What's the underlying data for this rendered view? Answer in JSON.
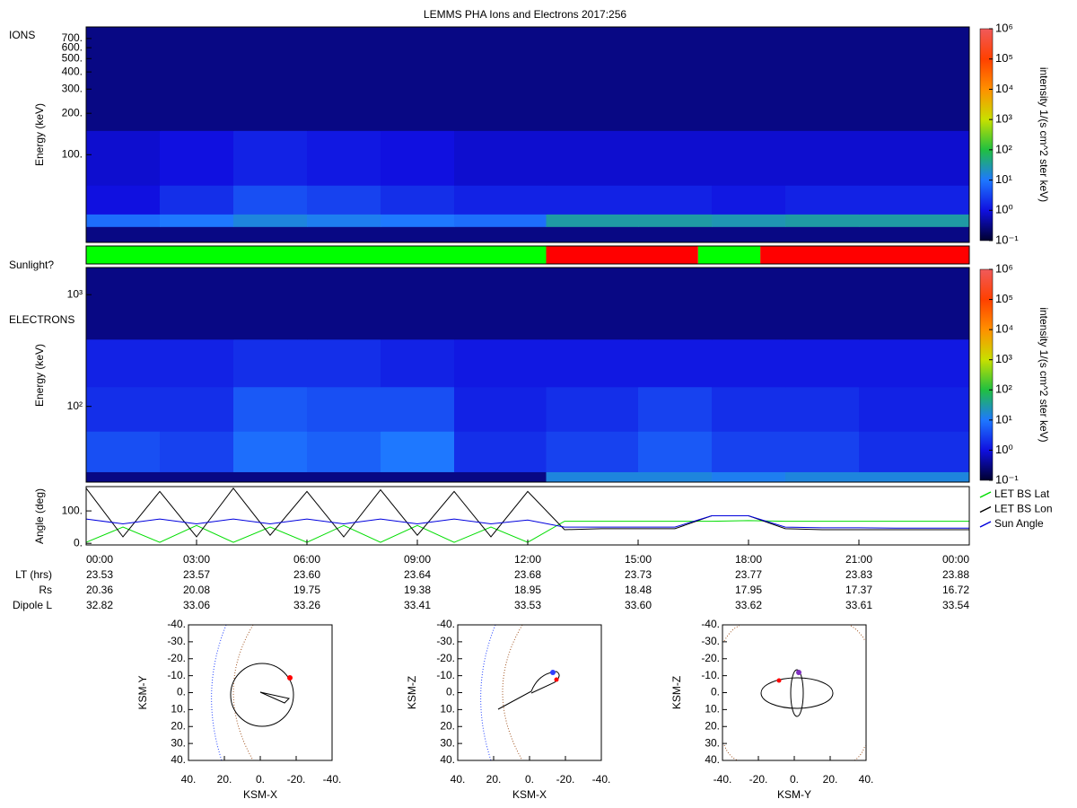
{
  "chart_data": [
    {
      "type": "spectrogram",
      "title": "LEMMS PHA Ions and Electrons  2017:256",
      "panel_label": "IONS",
      "ylabel": "Energy (keV)",
      "log_y": true,
      "xlim": [
        0,
        24
      ],
      "ylim": [
        23,
        850
      ],
      "yticks": [
        {
          "value": 100,
          "label": "100."
        },
        {
          "value": 200,
          "label": "200."
        },
        {
          "value": 300,
          "label": "300."
        },
        {
          "value": 400,
          "label": "400."
        },
        {
          "value": 500,
          "label": "500."
        },
        {
          "value": 600,
          "label": "600."
        },
        {
          "value": 700,
          "label": "700."
        }
      ],
      "time_bins": [
        0,
        2,
        4,
        6,
        8,
        10,
        12.5,
        15,
        17,
        19,
        21,
        24
      ],
      "energy_bins": [
        23,
        30,
        37,
        60,
        150,
        850
      ],
      "intensity": [
        [
          0.3,
          0.3,
          0.3,
          0.3,
          0.3,
          0.3,
          0.3,
          0.3,
          0.3,
          0.3,
          0.3
        ],
        [
          8,
          10,
          15,
          12,
          10,
          8,
          30,
          30,
          25,
          30,
          30
        ],
        [
          1,
          2,
          4,
          3,
          2,
          1.5,
          1.5,
          1.5,
          1.2,
          1.5,
          1.5
        ],
        [
          0.8,
          1,
          1.5,
          1.2,
          1,
          0.8,
          0.8,
          0.8,
          0.8,
          0.8,
          0.8
        ],
        [
          0.3,
          0.3,
          0.3,
          0.3,
          0.3,
          0.3,
          0.3,
          0.3,
          0.3,
          0.3,
          0.3
        ]
      ],
      "clim": [
        0.1,
        1000000
      ],
      "cticks": [
        {
          "value": 0.1,
          "label": "10⁻¹"
        },
        {
          "value": 1,
          "label": "10⁰"
        },
        {
          "value": 10,
          "label": "10¹"
        },
        {
          "value": 100,
          "label": "10²"
        },
        {
          "value": 1000,
          "label": "10³"
        },
        {
          "value": 10000,
          "label": "10⁴"
        },
        {
          "value": 100000,
          "label": "10⁵"
        },
        {
          "value": 1000000,
          "label": "10⁶"
        }
      ],
      "clabel": "intensity 1/(s cm^2 ster keV)",
      "colormap": [
        "#000030",
        "#1010e0",
        "#1e78ff",
        "#20c040",
        "#c8e000",
        "#ff9000",
        "#ff4000",
        "#f05a5a"
      ]
    },
    {
      "type": "state_bar",
      "panel_label": "Sunlight?",
      "xlim": [
        0,
        24
      ],
      "segments": [
        {
          "start": 0,
          "end": 12.5,
          "color": "#00ff00"
        },
        {
          "start": 12.5,
          "end": 16.63,
          "color": "#ff0000"
        },
        {
          "start": 16.63,
          "end": 18.32,
          "color": "#00ff00"
        },
        {
          "start": 18.32,
          "end": 24,
          "color": "#ff0000"
        }
      ]
    },
    {
      "type": "spectrogram",
      "panel_label": "ELECTRONS",
      "ylabel": "Energy (keV)",
      "log_y": true,
      "xlim": [
        0,
        24
      ],
      "ylim": [
        21,
        1750
      ],
      "yticks": [
        {
          "value": 100,
          "label": "10²"
        },
        {
          "value": 1000,
          "label": "10³"
        }
      ],
      "time_bins": [
        0,
        2,
        4,
        6,
        8,
        10,
        12.5,
        15,
        17,
        19,
        21,
        24
      ],
      "energy_bins": [
        21,
        26,
        60,
        150,
        400,
        1750
      ],
      "intensity": [
        [
          0.3,
          0.3,
          0.3,
          0.3,
          0.3,
          0.3,
          15,
          15,
          12,
          15,
          15
        ],
        [
          4,
          3,
          8,
          6,
          10,
          2,
          3,
          5,
          3,
          3,
          2
        ],
        [
          2,
          2,
          5,
          4,
          4,
          1.5,
          2,
          3,
          2,
          2,
          1.5
        ],
        [
          1.5,
          1.5,
          2,
          2,
          1.5,
          1.2,
          1.2,
          1.2,
          1.2,
          1.2,
          1.2
        ],
        [
          0.3,
          0.3,
          0.3,
          0.3,
          0.3,
          0.3,
          0.3,
          0.3,
          0.3,
          0.3,
          0.3
        ]
      ],
      "clim": [
        0.1,
        1000000
      ],
      "cticks": [
        {
          "value": 0.1,
          "label": "10⁻¹"
        },
        {
          "value": 1,
          "label": "10⁰"
        },
        {
          "value": 10,
          "label": "10¹"
        },
        {
          "value": 100,
          "label": "10²"
        },
        {
          "value": 1000,
          "label": "10³"
        },
        {
          "value": 10000,
          "label": "10⁴"
        },
        {
          "value": 100000,
          "label": "10⁵"
        },
        {
          "value": 1000000,
          "label": "10⁶"
        }
      ],
      "clabel": "intensity 1/(s cm^2 ster keV)",
      "colormap": [
        "#000030",
        "#1010e0",
        "#1e78ff",
        "#20c040",
        "#c8e000",
        "#ff9000",
        "#ff4000",
        "#f05a5a"
      ]
    },
    {
      "type": "line",
      "ylabel": "Angle (deg)",
      "xlim": [
        0,
        24
      ],
      "ylim": [
        -5,
        175
      ],
      "yticks": [
        {
          "value": 0,
          "label": "0."
        },
        {
          "value": 100,
          "label": "100."
        }
      ],
      "xticks": [
        {
          "value": 0,
          "label": "00:00"
        },
        {
          "value": 3,
          "label": "03:00"
        },
        {
          "value": 6,
          "label": "06:00"
        },
        {
          "value": 9,
          "label": "09:00"
        },
        {
          "value": 12,
          "label": "12:00"
        },
        {
          "value": 15,
          "label": "15:00"
        },
        {
          "value": 18,
          "label": "18:00"
        },
        {
          "value": 21,
          "label": "21:00"
        },
        {
          "value": 24,
          "label": "00:00"
        }
      ],
      "x": [
        0,
        1,
        2,
        3,
        4,
        5,
        6,
        7,
        8,
        9,
        10,
        11,
        12,
        13,
        14,
        15,
        16,
        17,
        18,
        19,
        20,
        21,
        22,
        23,
        24
      ],
      "legend": "right",
      "series": [
        {
          "name": "LET BS Lat",
          "color": "#00dd00",
          "values": [
            3,
            50,
            3,
            55,
            3,
            50,
            3,
            55,
            3,
            55,
            3,
            50,
            3,
            68,
            68,
            68,
            68,
            68,
            70,
            68,
            68,
            68,
            68,
            68,
            68
          ]
        },
        {
          "name": "LET BS Lon",
          "color": "#000000",
          "values": [
            170,
            20,
            160,
            20,
            170,
            25,
            160,
            20,
            165,
            25,
            160,
            20,
            160,
            42,
            45,
            45,
            45,
            85,
            85,
            45,
            42,
            42,
            42,
            42,
            42
          ]
        },
        {
          "name": "Sun Angle",
          "color": "#0000dd",
          "values": [
            75,
            60,
            75,
            60,
            75,
            60,
            75,
            60,
            75,
            60,
            75,
            60,
            72,
            50,
            50,
            50,
            50,
            85,
            85,
            50,
            48,
            48,
            47,
            47,
            47
          ]
        }
      ]
    }
  ],
  "ephemeris": {
    "rows": [
      {
        "name": "LT (hrs)",
        "values": [
          "23.53",
          "23.57",
          "23.60",
          "23.64",
          "23.68",
          "23.73",
          "23.77",
          "23.83",
          "23.88"
        ]
      },
      {
        "name": "Rs",
        "values": [
          "20.36",
          "20.08",
          "19.75",
          "19.38",
          "18.95",
          "18.48",
          "17.95",
          "17.37",
          "16.72"
        ]
      },
      {
        "name": "Dipole L",
        "values": [
          "32.82",
          "33.06",
          "33.26",
          "33.41",
          "33.53",
          "33.60",
          "33.62",
          "33.61",
          "33.54"
        ]
      }
    ]
  },
  "orbit_plots": [
    {
      "xlabel": "KSM-X",
      "ylabel": "KSM-Y",
      "xlim": [
        40,
        -40
      ],
      "ylim": [
        40,
        -40
      ],
      "xticks": [
        {
          "value": 40,
          "label": "40."
        },
        {
          "value": 20,
          "label": "20."
        },
        {
          "value": 0,
          "label": "0."
        },
        {
          "value": -20,
          "label": "-20."
        },
        {
          "value": -40,
          "label": "-40."
        }
      ],
      "yticks": [
        {
          "value": -40,
          "label": "-40."
        },
        {
          "value": -30,
          "label": "-30."
        },
        {
          "value": -20,
          "label": "-20."
        },
        {
          "value": -10,
          "label": "-10."
        },
        {
          "value": 0,
          "label": "0."
        },
        {
          "value": 10,
          "label": "10."
        },
        {
          "value": 20,
          "label": "20."
        },
        {
          "value": 30,
          "label": "30."
        },
        {
          "value": 40,
          "label": "40."
        }
      ]
    },
    {
      "xlabel": "KSM-X",
      "ylabel": "KSM-Z",
      "xlim": [
        40,
        -40
      ],
      "ylim": [
        40,
        -40
      ],
      "xticks": [
        {
          "value": 40,
          "label": "40."
        },
        {
          "value": 20,
          "label": "20."
        },
        {
          "value": 0,
          "label": "0."
        },
        {
          "value": -20,
          "label": "-20."
        },
        {
          "value": -40,
          "label": "-40."
        }
      ],
      "yticks": [
        {
          "value": -40,
          "label": "-40."
        },
        {
          "value": -30,
          "label": "-30."
        },
        {
          "value": -20,
          "label": "-20."
        },
        {
          "value": -10,
          "label": "-10."
        },
        {
          "value": 0,
          "label": "0."
        },
        {
          "value": 10,
          "label": "10."
        },
        {
          "value": 20,
          "label": "20."
        },
        {
          "value": 30,
          "label": "30."
        },
        {
          "value": 40,
          "label": "40."
        }
      ]
    },
    {
      "xlabel": "KSM-Y",
      "ylabel": "KSM-Z",
      "xlim": [
        -40,
        40
      ],
      "ylim": [
        40,
        -40
      ],
      "xticks": [
        {
          "value": -40,
          "label": "-40."
        },
        {
          "value": -20,
          "label": "-20."
        },
        {
          "value": 0,
          "label": "0."
        },
        {
          "value": 20,
          "label": "20."
        },
        {
          "value": 40,
          "label": "40."
        }
      ],
      "yticks": [
        {
          "value": -40,
          "label": "-40."
        },
        {
          "value": -30,
          "label": "-30."
        },
        {
          "value": -20,
          "label": "-20."
        },
        {
          "value": -10,
          "label": "-10."
        },
        {
          "value": 0,
          "label": "0."
        },
        {
          "value": 10,
          "label": "10."
        },
        {
          "value": 20,
          "label": "20."
        },
        {
          "value": 30,
          "label": "30."
        },
        {
          "value": 40,
          "label": "40."
        }
      ]
    }
  ]
}
